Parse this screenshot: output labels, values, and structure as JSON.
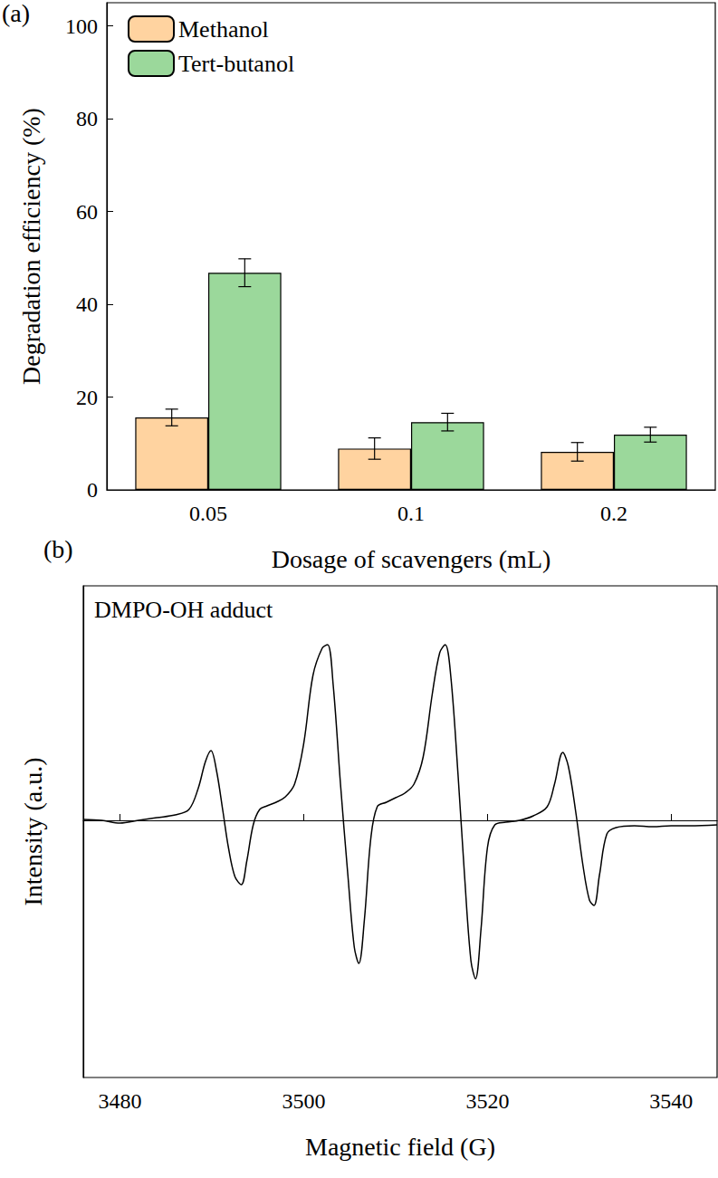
{
  "chart_data": [
    {
      "type": "bar",
      "panel_label": "(a)",
      "x_label": "Dosage of scavengers (mL)",
      "y_label": "Degradation efficiency (%)",
      "categories": [
        "0.05",
        "0.1",
        "0.2"
      ],
      "series": [
        {
          "name": "Methanol",
          "color": "#FFD3A0",
          "values": [
            15.6,
            8.9,
            8.2
          ],
          "errors": [
            1.8,
            2.3,
            2.0
          ]
        },
        {
          "name": "Tert-butanol",
          "color": "#9BD89B",
          "values": [
            46.8,
            14.6,
            11.9
          ],
          "errors": [
            3.0,
            1.9,
            1.6
          ]
        }
      ],
      "ylim": [
        0,
        105
      ],
      "yticks": [
        0,
        20,
        40,
        60,
        80,
        100
      ],
      "grid": false,
      "legend": "upper left"
    },
    {
      "type": "line",
      "panel_label": "(b)",
      "annotations": [
        "DMPO-OH adduct"
      ],
      "x_label": "Magnetic field (G)",
      "y_label": "Intensity (a.u.)",
      "color": "#000000",
      "x": [
        3476,
        3478,
        3480,
        3482,
        3484,
        3486,
        3487.5,
        3488.5,
        3489.3,
        3489.9,
        3490.5,
        3491.2,
        3491.8,
        3492.5,
        3493.2,
        3493.8,
        3494.5,
        3495.2,
        3496,
        3497,
        3498,
        3499,
        3500,
        3501,
        3502,
        3502.6,
        3503.2,
        3504,
        3504.8,
        3505.5,
        3506,
        3506.6,
        3507.3,
        3508,
        3509,
        3510,
        3511,
        3512,
        3513,
        3514,
        3514.8,
        3515.4,
        3516,
        3516.8,
        3517.5,
        3518.2,
        3518.7,
        3519.3,
        3520,
        3520.8,
        3522,
        3523.5,
        3525,
        3526.5,
        3527.3,
        3528.2,
        3528.8,
        3529.6,
        3530.4,
        3531.1,
        3531.6,
        3532.2,
        3533,
        3534,
        3536,
        3538,
        3540,
        3542,
        3545
      ],
      "values": [
        1,
        0,
        -3,
        0,
        3,
        6,
        12,
        35,
        65,
        77,
        55,
        10,
        -30,
        -62,
        -71,
        -45,
        -5,
        12,
        16,
        20,
        26,
        40,
        85,
        160,
        190,
        194,
        150,
        40,
        -60,
        -140,
        -158,
        -110,
        -20,
        15,
        20,
        25,
        30,
        40,
        70,
        140,
        185,
        194,
        160,
        50,
        -60,
        -155,
        -175,
        -120,
        -30,
        -5,
        -2,
        0,
        5,
        15,
        40,
        75,
        60,
        10,
        -50,
        -88,
        -94,
        -60,
        -15,
        -8,
        -6,
        -7,
        -6,
        -6,
        -5
      ],
      "xlim": [
        3476,
        3545
      ],
      "xticks": [
        3480,
        3500,
        3520,
        3540
      ],
      "ylim": [
        -284,
        259
      ],
      "grid": false,
      "tick_labels": "x"
    }
  ]
}
